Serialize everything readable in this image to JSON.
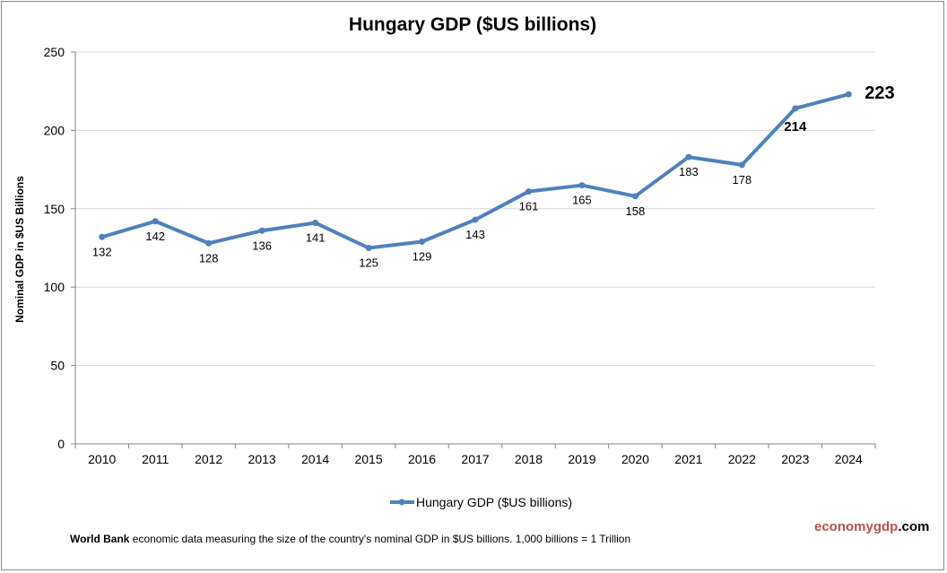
{
  "chart_data": {
    "type": "line",
    "title": "Hungary GDP ($US billions)",
    "xlabel": "",
    "ylabel": "Nominal GDP in $US Billions",
    "categories": [
      "2010",
      "2011",
      "2012",
      "2013",
      "2014",
      "2015",
      "2016",
      "2017",
      "2018",
      "2019",
      "2020",
      "2021",
      "2022",
      "2023",
      "2024"
    ],
    "series": [
      {
        "name": "Hungary GDP ($US billions)",
        "values": [
          132,
          142,
          128,
          136,
          141,
          125,
          129,
          143,
          161,
          165,
          158,
          183,
          178,
          214,
          223
        ]
      }
    ],
    "ylim": [
      0,
      250
    ],
    "yticks": [
      0,
      50,
      100,
      150,
      200,
      250
    ],
    "grid": "horizontal",
    "legend": "bottom",
    "color": "#4f81bd"
  },
  "footer": {
    "source_bold": "World Bank",
    "source_text": " economic data  measuring the size of the country's nominal  GDP in $US billions. 1,000 billions = 1 Trillion",
    "brand_part1": "economygdp",
    "brand_part2": ".com",
    "brand_color": "#c0504d"
  }
}
